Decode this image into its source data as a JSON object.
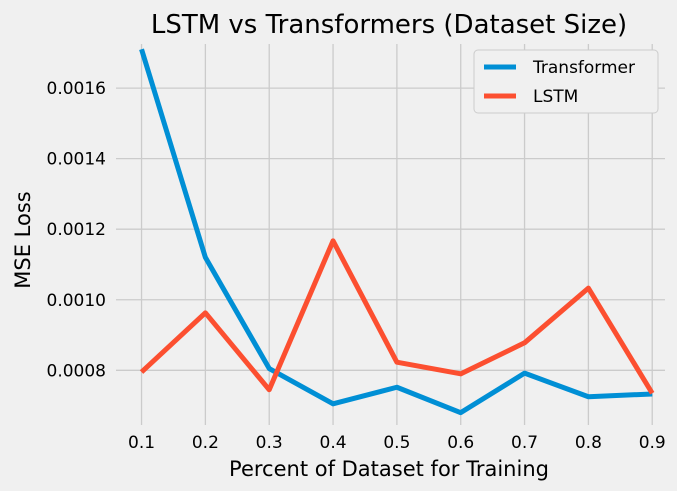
{
  "chart_data": {
    "type": "line",
    "title": "LSTM vs Transformers (Dataset Size)",
    "xlabel": "Percent of Dataset for Training",
    "ylabel": "MSE Loss",
    "x": [
      0.1,
      0.2,
      0.3,
      0.4,
      0.5,
      0.6,
      0.7,
      0.8,
      0.9
    ],
    "x_ticks": [
      "0.1",
      "0.2",
      "0.3",
      "0.4",
      "0.5",
      "0.6",
      "0.7",
      "0.8",
      "0.9"
    ],
    "y_ticks": [
      "0.0008",
      "0.0010",
      "0.0012",
      "0.0014",
      "0.0016"
    ],
    "y_tick_values": [
      0.0008,
      0.001,
      0.0012,
      0.0014,
      0.0016
    ],
    "xlim": [
      0.06,
      0.92
    ],
    "ylim": [
      0.000645,
      0.001725
    ],
    "grid": true,
    "legend_position": "top-right",
    "series": [
      {
        "name": "Transformer",
        "color": "#008fd5",
        "values": [
          0.00171,
          0.00112,
          0.000805,
          0.000705,
          0.000752,
          0.00068,
          0.000792,
          0.000725,
          0.000733
        ]
      },
      {
        "name": "LSTM",
        "color": "#fc4f30",
        "values": [
          0.000795,
          0.000963,
          0.000745,
          0.001167,
          0.000823,
          0.00079,
          0.000878,
          0.001033,
          0.000735
        ]
      }
    ]
  }
}
